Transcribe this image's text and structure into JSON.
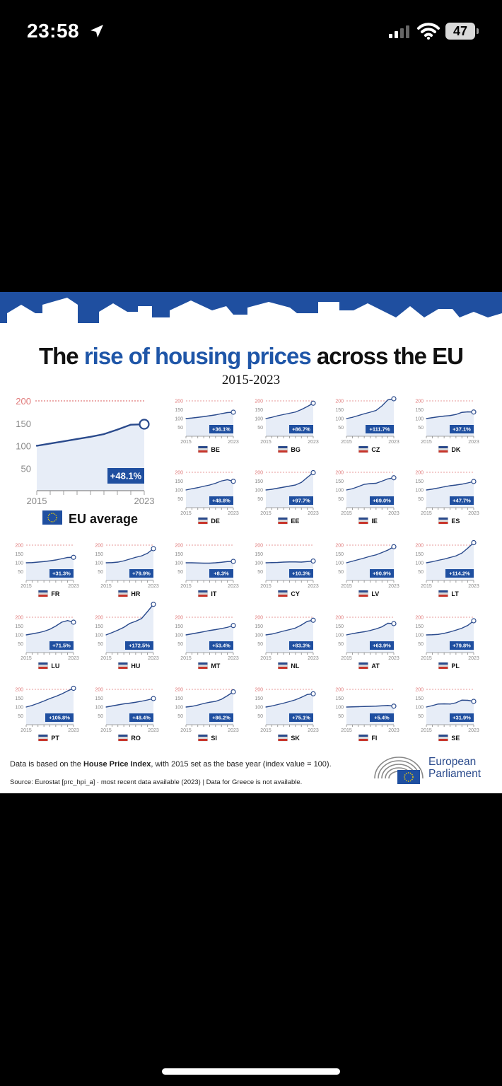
{
  "status_bar": {
    "time": "23:58",
    "battery": "47"
  },
  "title": {
    "before": "The ",
    "highlight": "rise of housing prices",
    "after": " across the EU"
  },
  "subtitle": "2015-2023",
  "chart_data": {
    "type": "line",
    "x": [
      "2015",
      "2016",
      "2017",
      "2018",
      "2019",
      "2020",
      "2021",
      "2022",
      "2023"
    ],
    "x_tick_labels": [
      "2015",
      "2023"
    ],
    "ylim": [
      0,
      200
    ],
    "y_ticks": [
      50,
      100,
      150,
      200
    ],
    "main": {
      "name": "EU average",
      "change": "+48.1%",
      "values": [
        100,
        105,
        110,
        115,
        120,
        126,
        136,
        147,
        148
      ]
    },
    "countries": [
      {
        "code": "BE",
        "change": "+36.1%",
        "values": [
          100,
          103,
          107,
          111,
          116,
          121,
          128,
          134,
          136
        ]
      },
      {
        "code": "BG",
        "change": "+86.7%",
        "values": [
          100,
          107,
          116,
          123,
          130,
          137,
          151,
          168,
          187
        ]
      },
      {
        "code": "CZ",
        "change": "+111.7%",
        "values": [
          100,
          107,
          117,
          127,
          136,
          146,
          172,
          206,
          212
        ]
      },
      {
        "code": "DK",
        "change": "+37.1%",
        "values": [
          100,
          105,
          110,
          114,
          117,
          123,
          135,
          138,
          137
        ]
      },
      {
        "code": "DE",
        "change": "+48.8%",
        "values": [
          100,
          107,
          113,
          121,
          128,
          138,
          151,
          158,
          149
        ]
      },
      {
        "code": "EE",
        "change": "+97.7%",
        "values": [
          100,
          104,
          110,
          116,
          122,
          128,
          143,
          171,
          198
        ]
      },
      {
        "code": "IE",
        "change": "+69.0%",
        "values": [
          100,
          107,
          119,
          132,
          136,
          138,
          150,
          163,
          169
        ]
      },
      {
        "code": "ES",
        "change": "+47.7%",
        "values": [
          100,
          105,
          111,
          118,
          124,
          128,
          133,
          140,
          148
        ]
      },
      {
        "code": "FR",
        "change": "+31.3%",
        "values": [
          100,
          101,
          104,
          107,
          111,
          116,
          123,
          130,
          131
        ]
      },
      {
        "code": "HR",
        "change": "+79.9%",
        "values": [
          100,
          101,
          104,
          111,
          121,
          131,
          139,
          154,
          180
        ]
      },
      {
        "code": "IT",
        "change": "+8.3%",
        "values": [
          100,
          100,
          99,
          98,
          98,
          100,
          103,
          107,
          108
        ]
      },
      {
        "code": "CY",
        "change": "+10.3%",
        "values": [
          100,
          101,
          102,
          104,
          105,
          105,
          104,
          107,
          110
        ]
      },
      {
        "code": "LV",
        "change": "+90.9%",
        "values": [
          100,
          109,
          118,
          127,
          137,
          145,
          158,
          172,
          191
        ]
      },
      {
        "code": "LT",
        "change": "+114.2%",
        "values": [
          100,
          106,
          114,
          121,
          130,
          139,
          155,
          183,
          214
        ]
      },
      {
        "code": "LU",
        "change": "+71.5%",
        "values": [
          100,
          106,
          112,
          120,
          132,
          150,
          172,
          181,
          172
        ]
      },
      {
        "code": "HU",
        "change": "+172.5%",
        "values": [
          100,
          113,
          127,
          143,
          165,
          177,
          193,
          232,
          273
        ]
      },
      {
        "code": "MT",
        "change": "+53.4%",
        "values": [
          100,
          106,
          112,
          118,
          125,
          130,
          136,
          143,
          153
        ]
      },
      {
        "code": "NL",
        "change": "+83.3%",
        "values": [
          100,
          105,
          113,
          122,
          130,
          139,
          156,
          177,
          183
        ]
      },
      {
        "code": "AT",
        "change": "+63.9%",
        "values": [
          100,
          107,
          113,
          118,
          125,
          134,
          146,
          166,
          164
        ]
      },
      {
        "code": "PL",
        "change": "+79.8%",
        "values": [
          100,
          101,
          103,
          109,
          117,
          127,
          138,
          154,
          180
        ]
      },
      {
        "code": "PT",
        "change": "+105.8%",
        "values": [
          100,
          109,
          121,
          134,
          148,
          160,
          174,
          191,
          206
        ]
      },
      {
        "code": "RO",
        "change": "+48.4%",
        "values": [
          100,
          106,
          112,
          118,
          122,
          127,
          133,
          140,
          148
        ]
      },
      {
        "code": "SI",
        "change": "+86.2%",
        "values": [
          100,
          104,
          111,
          120,
          127,
          132,
          144,
          164,
          186
        ]
      },
      {
        "code": "SK",
        "change": "+75.1%",
        "values": [
          100,
          106,
          114,
          122,
          131,
          141,
          155,
          171,
          175
        ]
      },
      {
        "code": "FI",
        "change": "+5.4%",
        "values": [
          100,
          101,
          102,
          103,
          104,
          105,
          107,
          109,
          105
        ]
      },
      {
        "code": "SE",
        "change": "+31.9%",
        "values": [
          100,
          108,
          117,
          118,
          117,
          124,
          139,
          138,
          132
        ]
      }
    ]
  },
  "footer": {
    "note_before": "Data is based on the ",
    "note_bold": "House Price Index",
    "note_after": ", with 2015 set as the base year (index value = 100).",
    "source": "Source: Eurostat [prc_hpi_a]  ·  most recent data available (2023)  |  Data for Greece is not available.",
    "logo_line1": "European",
    "logo_line2": "Parliament"
  },
  "colors": {
    "accent": "#1f56a8",
    "line": "#2a4a8c",
    "fill": "#e7edf7",
    "grid": "#e07a7a",
    "label_bg": "#1f4fa0"
  }
}
